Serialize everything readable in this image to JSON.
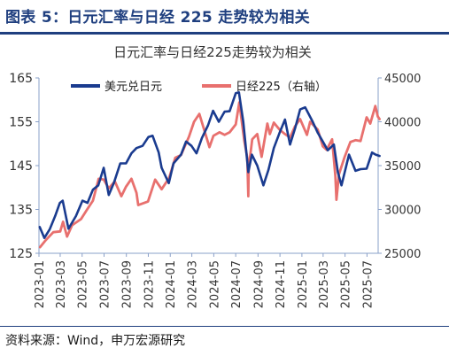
{
  "figure": {
    "title": "图表 5：日元汇率与日经 225 走势较为相关",
    "source": "资料来源：Wind，申万宏源研究"
  },
  "chart_data": {
    "type": "line",
    "title": "日元汇率与日经225走势较为相关",
    "colors": {
      "usdjpy": "#1a3b8f",
      "nikkei": "#e8706e",
      "axis": "#8aa0c8",
      "text": "#333333",
      "figure": "#1f3f7f"
    },
    "legend": [
      "美元兑日元",
      "日经225（右轴）"
    ],
    "legend_position": "top",
    "grid": false,
    "left_axis": {
      "ylim": [
        125,
        165
      ],
      "ticks": [
        "125",
        "135",
        "145",
        "155",
        "165"
      ]
    },
    "right_axis": {
      "ylim": [
        25000,
        45000
      ],
      "ticks": [
        "25000",
        "30000",
        "35000",
        "40000",
        "45000"
      ]
    },
    "x_ticks": [
      "2023-01",
      "2023-03",
      "2023-05",
      "2023-07",
      "2023-09",
      "2023-11",
      "2024-01",
      "2024-03",
      "2024-05",
      "2024-07",
      "2024-09",
      "2024-11",
      "2025-01",
      "2025-03",
      "2025-05",
      "2025-07"
    ],
    "x_range": [
      "2023-01",
      "2025-08"
    ],
    "series": [
      {
        "name": "美元兑日元",
        "axis": "left",
        "x": [
          "2023-01-03",
          "2023-01-16",
          "2023-01-31",
          "2023-02-15",
          "2023-02-28",
          "2023-03-08",
          "2023-03-24",
          "2023-04-14",
          "2023-05-02",
          "2023-05-16",
          "2023-05-31",
          "2023-06-15",
          "2023-06-30",
          "2023-07-14",
          "2023-07-28",
          "2023-08-15",
          "2023-08-31",
          "2023-09-15",
          "2023-09-29",
          "2023-10-16",
          "2023-11-01",
          "2023-11-13",
          "2023-11-30",
          "2023-12-08",
          "2023-12-28",
          "2024-01-10",
          "2024-01-31",
          "2024-02-14",
          "2024-02-29",
          "2024-03-14",
          "2024-03-29",
          "2024-04-15",
          "2024-04-29",
          "2024-05-15",
          "2024-05-31",
          "2024-06-14",
          "2024-07-01",
          "2024-07-10",
          "2024-07-22",
          "2024-08-05",
          "2024-08-15",
          "2024-08-30",
          "2024-09-16",
          "2024-09-30",
          "2024-10-15",
          "2024-10-31",
          "2024-11-15",
          "2024-11-29",
          "2024-12-13",
          "2024-12-27",
          "2025-01-10",
          "2025-01-31",
          "2025-02-14",
          "2025-02-28",
          "2025-03-14",
          "2025-03-31",
          "2025-04-11",
          "2025-04-21",
          "2025-05-12",
          "2025-05-30",
          "2025-06-13",
          "2025-06-30",
          "2025-07-15",
          "2025-07-25",
          "2025-08-05"
        ],
        "values": [
          131.0,
          128.5,
          130.5,
          133.5,
          136.5,
          137.0,
          130.6,
          133.5,
          137.0,
          136.5,
          139.5,
          140.5,
          144.5,
          138.3,
          141.0,
          145.5,
          145.5,
          147.8,
          149.0,
          149.5,
          151.5,
          151.8,
          148.0,
          144.5,
          141.0,
          145.5,
          147.5,
          150.5,
          149.5,
          147.8,
          151.3,
          154.2,
          157.5,
          155.0,
          157.3,
          157.4,
          161.5,
          161.7,
          155.0,
          143.5,
          147.5,
          145.0,
          140.5,
          144.0,
          149.0,
          152.5,
          155.5,
          149.8,
          153.5,
          157.8,
          158.3,
          155.0,
          152.5,
          150.5,
          148.5,
          149.8,
          143.5,
          140.5,
          147.5,
          143.8,
          144.2,
          144.3,
          148.0,
          147.5,
          147.2
        ]
      },
      {
        "name": "日经225（右轴）",
        "axis": "right",
        "x": [
          "2023-01-04",
          "2023-01-20",
          "2023-02-10",
          "2023-03-01",
          "2023-03-09",
          "2023-03-20",
          "2023-04-03",
          "2023-04-28",
          "2023-05-15",
          "2023-05-31",
          "2023-06-16",
          "2023-06-30",
          "2023-07-14",
          "2023-07-31",
          "2023-08-18",
          "2023-08-31",
          "2023-09-15",
          "2023-09-29",
          "2023-10-04",
          "2023-10-31",
          "2023-11-20",
          "2023-12-08",
          "2023-12-29",
          "2024-01-15",
          "2024-01-31",
          "2024-02-22",
          "2024-03-07",
          "2024-03-22",
          "2024-04-19",
          "2024-04-30",
          "2024-05-17",
          "2024-05-31",
          "2024-06-14",
          "2024-07-01",
          "2024-07-11",
          "2024-07-25",
          "2024-08-02",
          "2024-08-05",
          "2024-08-06",
          "2024-08-16",
          "2024-08-30",
          "2024-09-11",
          "2024-09-27",
          "2024-10-04",
          "2024-10-15",
          "2024-10-31",
          "2024-11-15",
          "2024-11-29",
          "2024-12-13",
          "2024-12-27",
          "2025-01-15",
          "2025-01-24",
          "2025-02-14",
          "2025-02-28",
          "2025-03-11",
          "2025-03-26",
          "2025-04-04",
          "2025-04-07",
          "2025-04-14",
          "2025-04-30",
          "2025-05-16",
          "2025-05-30",
          "2025-06-13",
          "2025-06-30",
          "2025-07-10",
          "2025-07-24",
          "2025-07-31",
          "2025-08-05"
        ],
        "values": [
          25700,
          26500,
          27400,
          27500,
          28600,
          26900,
          28200,
          28900,
          30000,
          31000,
          33500,
          33400,
          32400,
          33200,
          31500,
          32600,
          33500,
          31900,
          30500,
          30900,
          33400,
          32300,
          33600,
          35900,
          36200,
          38300,
          40000,
          40900,
          37100,
          38400,
          38800,
          38500,
          38800,
          39700,
          42200,
          37800,
          35900,
          31500,
          34700,
          38000,
          38600,
          36000,
          39800,
          38600,
          39900,
          39100,
          38600,
          38200,
          39500,
          40300,
          38500,
          40000,
          39100,
          37200,
          36800,
          38000,
          33800,
          31100,
          34000,
          36000,
          37700,
          37900,
          37800,
          40500,
          39800,
          41800,
          40600,
          40300
        ]
      }
    ]
  }
}
